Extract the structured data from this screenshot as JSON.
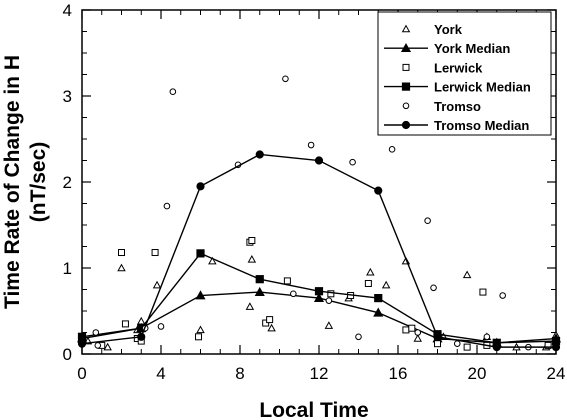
{
  "chart_data": {
    "type": "scatter",
    "title": "",
    "xlabel": "Local Time",
    "ylabel_lines": [
      "Time Rate of Change in H",
      "(nT/sec)"
    ],
    "xlim": [
      0,
      24
    ],
    "ylim": [
      0,
      4
    ],
    "xticks": [
      0,
      4,
      8,
      12,
      16,
      20,
      24
    ],
    "yticks": [
      0,
      1,
      2,
      3,
      4
    ],
    "grid": false,
    "legend_position": "top-right",
    "series": [
      {
        "name": "York",
        "kind": "scatter",
        "marker": "triangle-open",
        "points": [
          [
            0.3,
            0.15
          ],
          [
            1.3,
            0.08
          ],
          [
            2,
            1.0
          ],
          [
            2.8,
            0.28
          ],
          [
            3,
            0.38
          ],
          [
            3.8,
            0.8
          ],
          [
            6,
            0.28
          ],
          [
            6.6,
            1.08
          ],
          [
            8.5,
            0.55
          ],
          [
            8.6,
            1.1
          ],
          [
            9.6,
            0.3
          ],
          [
            12.5,
            0.33
          ],
          [
            13.5,
            0.65
          ],
          [
            14.6,
            0.95
          ],
          [
            15.4,
            0.8
          ],
          [
            16.4,
            1.08
          ],
          [
            17,
            0.18
          ],
          [
            18.3,
            0.2
          ],
          [
            19.5,
            0.92
          ],
          [
            20.5,
            0.2
          ],
          [
            22,
            0.08
          ],
          [
            23.5,
            0.08
          ],
          [
            24,
            0.22
          ]
        ]
      },
      {
        "name": "York Median",
        "kind": "line",
        "marker": "triangle-filled",
        "points": [
          [
            0,
            0.18
          ],
          [
            3,
            0.3
          ],
          [
            6,
            0.68
          ],
          [
            9,
            0.72
          ],
          [
            12,
            0.65
          ],
          [
            15,
            0.48
          ],
          [
            18,
            0.18
          ],
          [
            21,
            0.13
          ],
          [
            24,
            0.18
          ]
        ]
      },
      {
        "name": "Lerwick",
        "kind": "scatter",
        "marker": "square-open",
        "points": [
          [
            1,
            0.1
          ],
          [
            2,
            1.18
          ],
          [
            2.2,
            0.35
          ],
          [
            2.8,
            0.18
          ],
          [
            3,
            0.15
          ],
          [
            3.7,
            1.18
          ],
          [
            5.9,
            0.2
          ],
          [
            8.5,
            1.3
          ],
          [
            8.6,
            1.32
          ],
          [
            9.3,
            0.36
          ],
          [
            9.5,
            0.4
          ],
          [
            10.4,
            0.85
          ],
          [
            12.6,
            0.7
          ],
          [
            13.6,
            0.68
          ],
          [
            14.5,
            0.82
          ],
          [
            16.4,
            0.28
          ],
          [
            16.7,
            0.3
          ],
          [
            18,
            0.12
          ],
          [
            19.5,
            0.08
          ],
          [
            20.3,
            0.72
          ],
          [
            20.5,
            0.1
          ],
          [
            23.6,
            0.1
          ],
          [
            24,
            0.15
          ]
        ]
      },
      {
        "name": "Lerwick Median",
        "kind": "line",
        "marker": "square-filled",
        "points": [
          [
            0,
            0.2
          ],
          [
            3,
            0.3
          ],
          [
            6,
            1.17
          ],
          [
            9,
            0.87
          ],
          [
            12,
            0.73
          ],
          [
            15,
            0.65
          ],
          [
            18,
            0.23
          ],
          [
            21,
            0.13
          ],
          [
            24,
            0.15
          ]
        ]
      },
      {
        "name": "Tromso",
        "kind": "scatter",
        "marker": "circle-open",
        "points": [
          [
            0.7,
            0.25
          ],
          [
            0.8,
            0.1
          ],
          [
            3.2,
            0.3
          ],
          [
            4,
            0.32
          ],
          [
            4.3,
            1.72
          ],
          [
            4.6,
            3.05
          ],
          [
            7.9,
            2.2
          ],
          [
            10.3,
            3.2
          ],
          [
            10.7,
            0.7
          ],
          [
            11.6,
            2.43
          ],
          [
            12.5,
            0.62
          ],
          [
            13.7,
            2.23
          ],
          [
            14,
            0.2
          ],
          [
            15.7,
            2.38
          ],
          [
            17,
            0.25
          ],
          [
            17.5,
            1.55
          ],
          [
            17.8,
            0.77
          ],
          [
            19,
            0.12
          ],
          [
            20.5,
            0.2
          ],
          [
            21.3,
            0.68
          ],
          [
            22.6,
            0.08
          ]
        ]
      },
      {
        "name": "Tromso Median",
        "kind": "line",
        "marker": "circle-filled",
        "points": [
          [
            0,
            0.12
          ],
          [
            3,
            0.2
          ],
          [
            6,
            1.95
          ],
          [
            9,
            2.32
          ],
          [
            12,
            2.25
          ],
          [
            15,
            1.9
          ],
          [
            18,
            0.2
          ],
          [
            21,
            0.08
          ],
          [
            24,
            0.08
          ]
        ]
      }
    ]
  }
}
